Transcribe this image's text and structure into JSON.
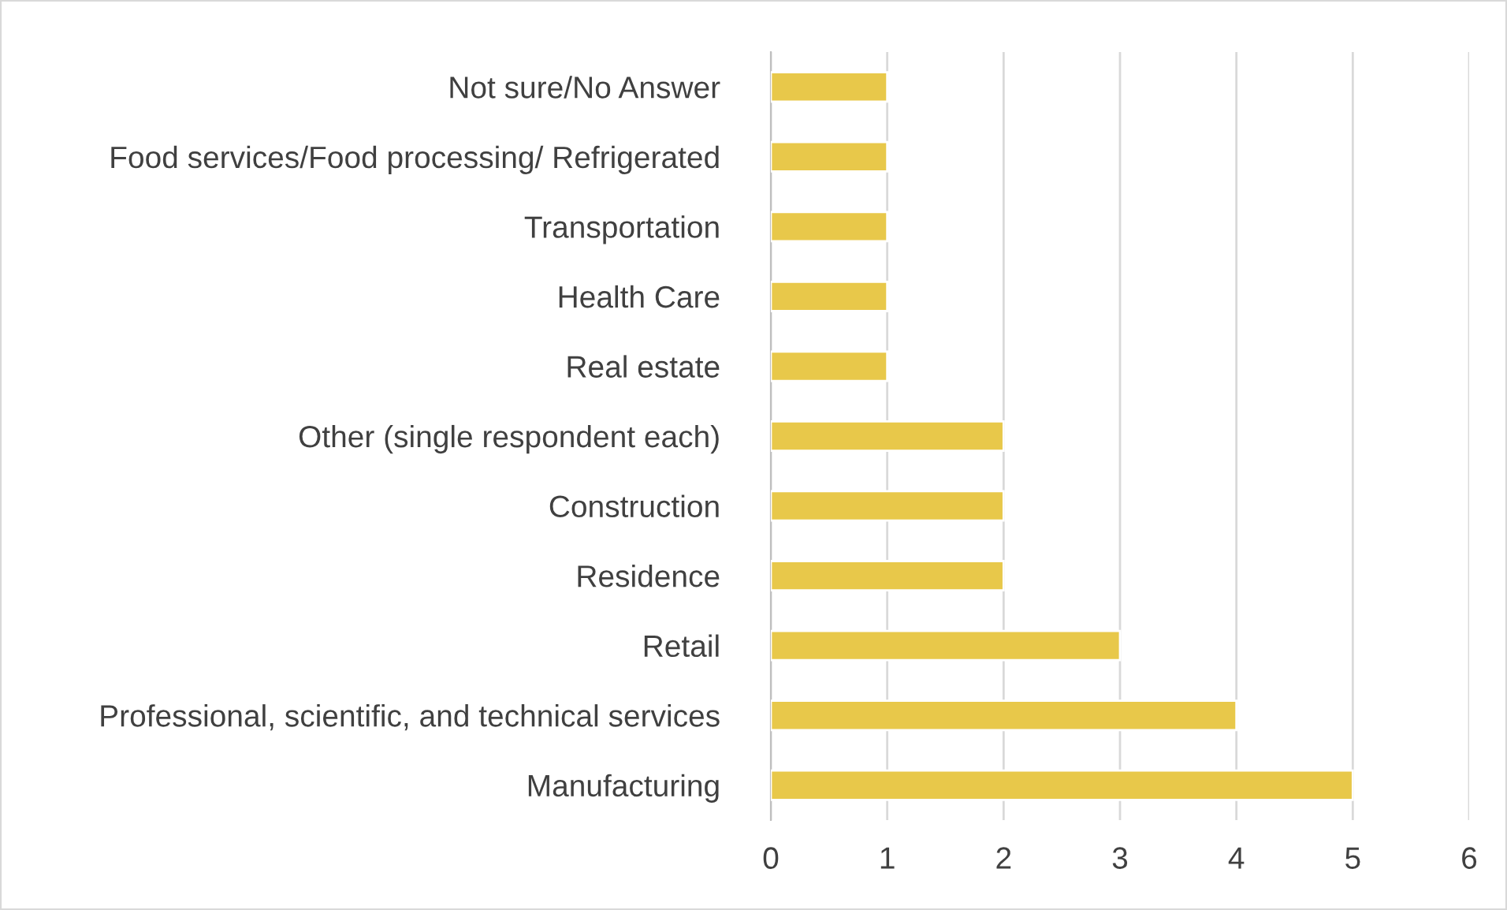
{
  "chart_data": {
    "type": "bar",
    "orientation": "horizontal",
    "categories": [
      "Not sure/No Answer",
      "Food services/Food processing/ Refrigerated",
      "Transportation",
      "Health Care",
      "Real estate",
      "Other (single respondent each)",
      "Construction",
      "Residence",
      "Retail",
      "Professional, scientific, and technical services",
      "Manufacturing"
    ],
    "values": [
      1,
      1,
      1,
      1,
      1,
      2,
      2,
      2,
      3,
      4,
      5
    ],
    "color": "#e8c84a",
    "xlim": [
      0,
      6
    ],
    "xticks": [
      0,
      1,
      2,
      3,
      4,
      5,
      6
    ],
    "grid": "x"
  }
}
